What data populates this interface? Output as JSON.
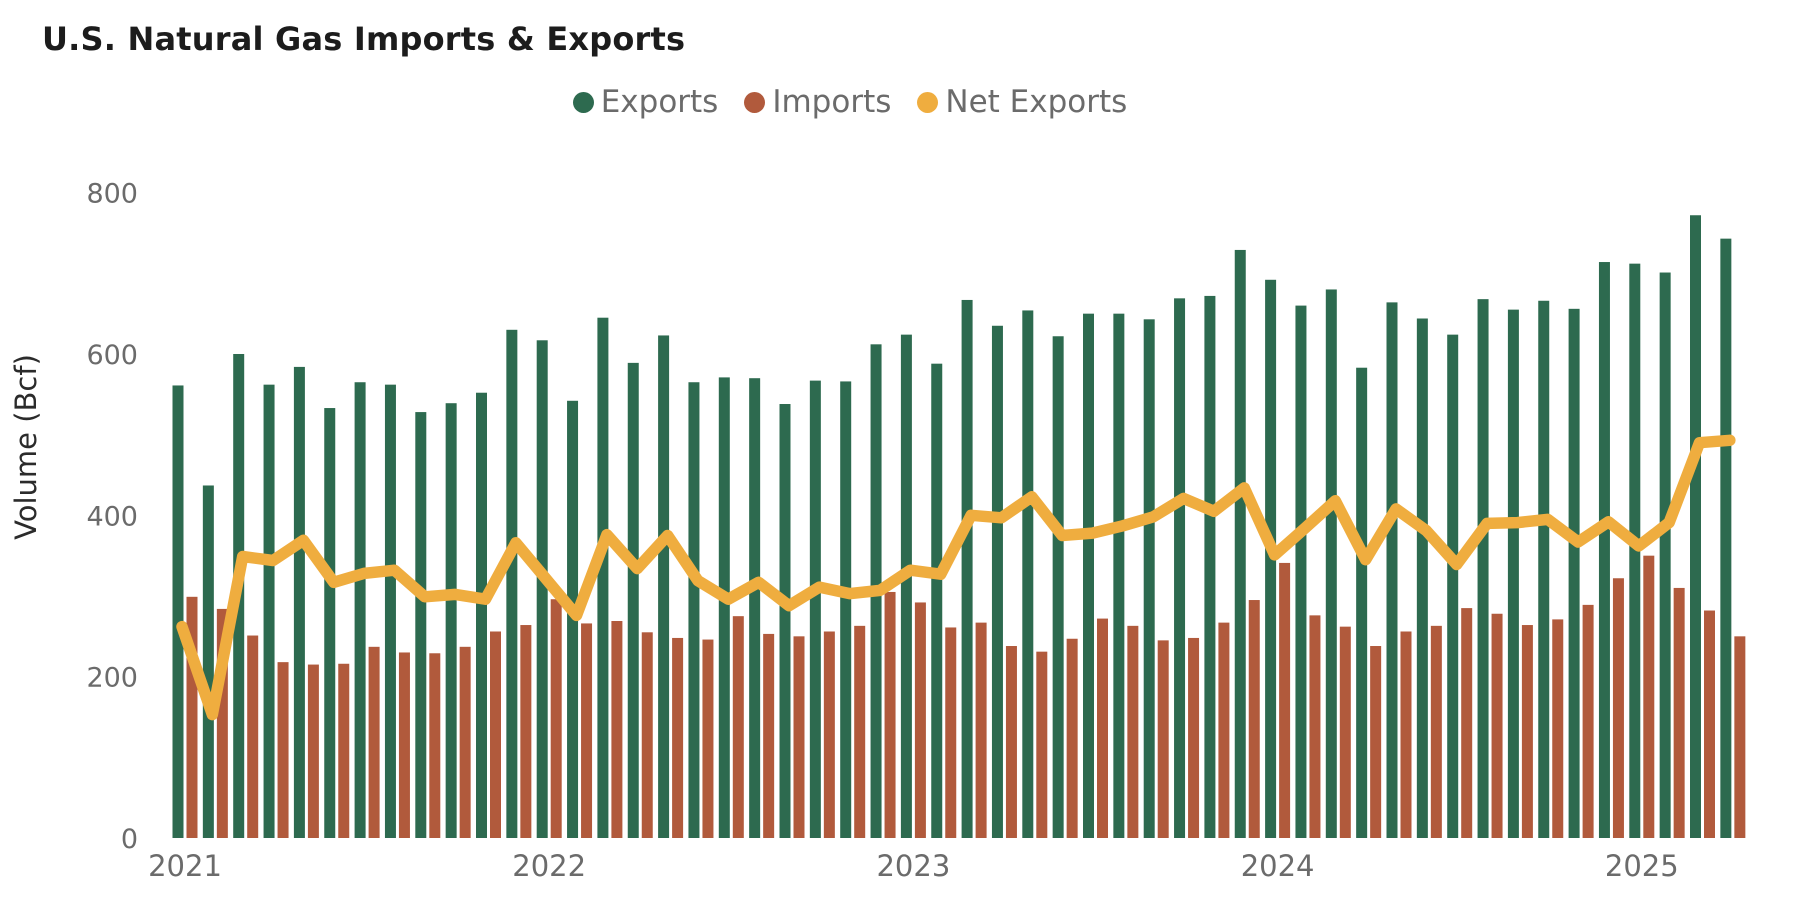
{
  "title": "U.S. Natural Gas Imports & Exports",
  "legend": {
    "exports_label": "Exports",
    "imports_label": "Imports",
    "net_exports_label": "Net Exports"
  },
  "y_axis": {
    "title": "Volume (Bcf)",
    "ticks": [
      0,
      200,
      400,
      600,
      800
    ]
  },
  "x_axis": {
    "ticks": [
      "2021",
      "2022",
      "2023",
      "2024",
      "2025"
    ]
  },
  "colors": {
    "exports": "#2D6A4F",
    "imports": "#B15A3C",
    "net_exports": "#EFAD3F",
    "axis_text": "#6B6B6B",
    "axis_title_text": "#2B2B2B",
    "title_text": "#1C1C1C",
    "background": "#FFFFFF"
  },
  "chart_data": {
    "type": "bar",
    "title": "U.S. Natural Gas Imports & Exports",
    "xlabel": "",
    "ylabel": "Volume (Bcf)",
    "ylim": [
      0,
      800
    ],
    "grid": false,
    "legend_position": "top-center",
    "x_tick_labels": [
      "2021",
      "2022",
      "2023",
      "2024",
      "2025"
    ],
    "months": [
      "Jan 2021",
      "Feb 2021",
      "Mar 2021",
      "Apr 2021",
      "May 2021",
      "Jun 2021",
      "Jul 2021",
      "Aug 2021",
      "Sep 2021",
      "Oct 2021",
      "Nov 2021",
      "Dec 2021",
      "Jan 2022",
      "Feb 2022",
      "Mar 2022",
      "Apr 2022",
      "May 2022",
      "Jun 2022",
      "Jul 2022",
      "Aug 2022",
      "Sep 2022",
      "Oct 2022",
      "Nov 2022",
      "Dec 2022",
      "Jan 2023",
      "Feb 2023",
      "Mar 2023",
      "Apr 2023",
      "May 2023",
      "Jun 2023",
      "Jul 2023",
      "Aug 2023",
      "Sep 2023",
      "Oct 2023",
      "Nov 2023",
      "Dec 2023",
      "Jan 2024",
      "Feb 2024",
      "Mar 2024",
      "Apr 2024",
      "May 2024",
      "Jun 2024",
      "Jul 2024",
      "Aug 2024",
      "Sep 2024",
      "Oct 2024",
      "Nov 2024",
      "Dec 2024",
      "Jan 2025",
      "Feb 2025",
      "Mar 2025",
      "Apr 2025"
    ],
    "series": [
      {
        "name": "Exports",
        "render": "bar",
        "color": "#2D6A4F",
        "values": [
          561,
          437,
          600,
          562,
          584,
          533,
          565,
          562,
          528,
          539,
          552,
          630,
          617,
          542,
          645,
          589,
          623,
          565,
          571,
          570,
          538,
          567,
          566,
          612,
          624,
          588,
          667,
          635,
          654,
          622,
          650,
          650,
          643,
          669,
          672,
          729,
          692,
          660,
          680,
          583,
          664,
          644,
          624,
          668,
          655,
          666,
          656,
          714,
          712,
          701,
          772,
          743
        ]
      },
      {
        "name": "Imports",
        "render": "bar",
        "color": "#B15A3C",
        "values": [
          299,
          284,
          251,
          218,
          215,
          216,
          237,
          230,
          229,
          237,
          256,
          264,
          296,
          266,
          269,
          255,
          248,
          246,
          275,
          253,
          250,
          256,
          263,
          305,
          292,
          261,
          267,
          238,
          231,
          247,
          272,
          263,
          245,
          248,
          267,
          295,
          341,
          276,
          262,
          238,
          256,
          263,
          285,
          278,
          264,
          271,
          289,
          322,
          350,
          310,
          282,
          250
        ]
      },
      {
        "name": "Net Exports",
        "render": "line",
        "color": "#EFAD3F",
        "values": [
          262,
          153,
          349,
          344,
          369,
          317,
          328,
          332,
          299,
          302,
          296,
          366,
          321,
          276,
          376,
          334,
          375,
          319,
          296,
          317,
          288,
          311,
          303,
          307,
          332,
          327,
          400,
          397,
          423,
          375,
          378,
          387,
          398,
          421,
          405,
          434,
          351,
          384,
          418,
          345,
          408,
          381,
          339,
          390,
          391,
          395,
          367,
          392,
          362,
          391,
          490,
          493
        ]
      }
    ]
  }
}
